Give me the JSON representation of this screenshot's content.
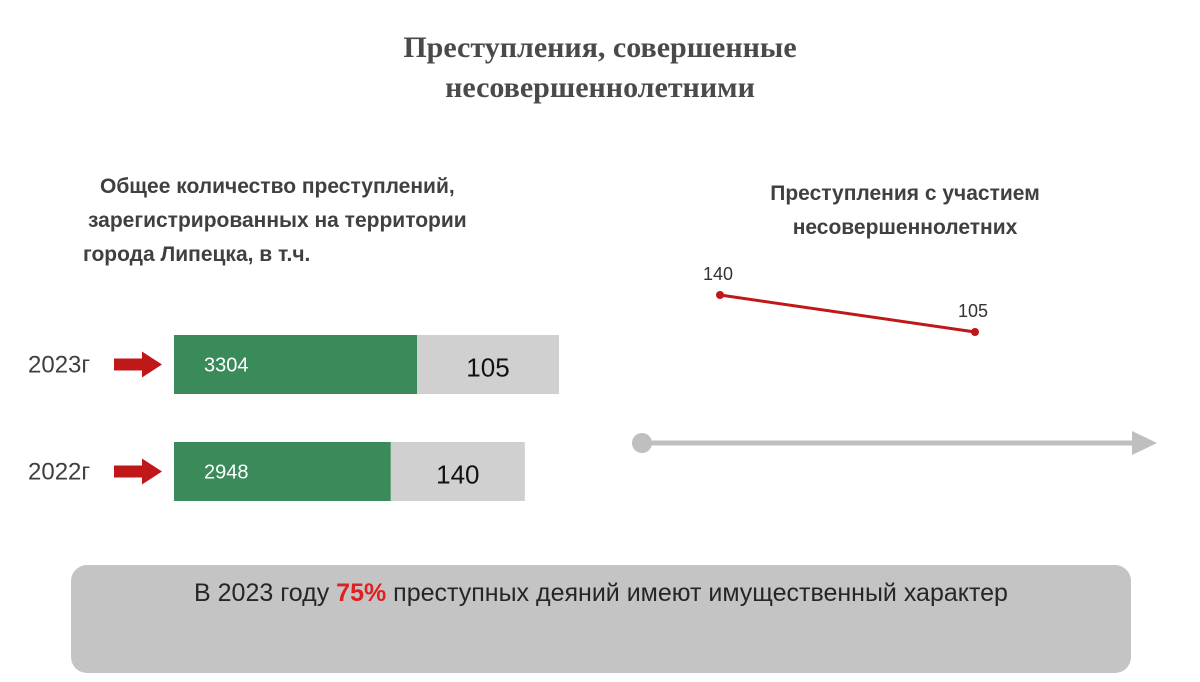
{
  "page": {
    "title_line1": "Преступления,  совершенные",
    "title_line2": "несовершеннолетними"
  },
  "left_panel": {
    "subtitle_line1": "Общее количество  преступлений,",
    "subtitle_line2": "зарегистрированных  на территории",
    "subtitle_line3": "города Липецка, в т.ч."
  },
  "right_panel": {
    "subtitle_line1": "Преступления с участием",
    "subtitle_line2": "несовершеннолетних"
  },
  "banner": {
    "prefix": "В 2023 году ",
    "highlight": "75%",
    "suffix": " преступных деяний имеют имущественный характер"
  },
  "chart_data": [
    {
      "type": "bar",
      "orientation": "horizontal",
      "stacked": true,
      "categories": [
        "2023г",
        "2022г"
      ],
      "series": [
        {
          "values": [
            3304,
            2948
          ],
          "color": "#3a8a5a"
        },
        {
          "values": [
            105,
            140
          ],
          "color": "#d0d0d0"
        }
      ],
      "marker_color": "#c01818"
    },
    {
      "type": "line",
      "values": [
        140,
        105
      ],
      "color": "#c01818",
      "axis_color": "#bfbfbf"
    }
  ]
}
